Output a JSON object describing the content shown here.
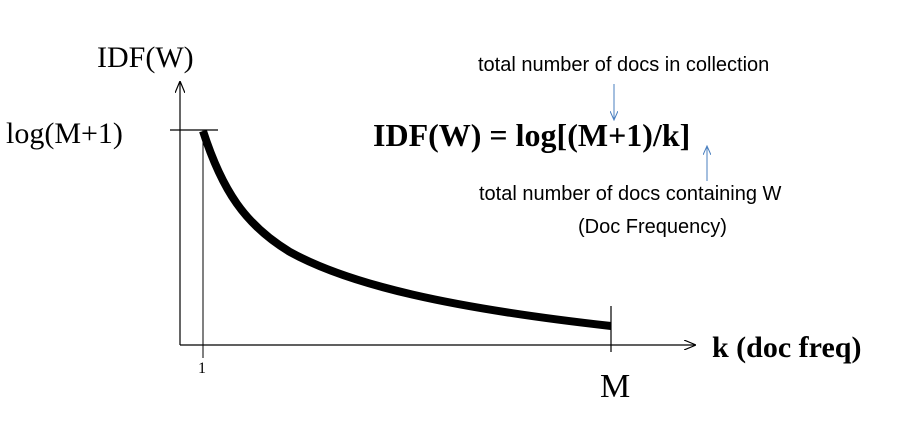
{
  "y_axis_label": "IDF(W)",
  "y_tick_label": "log(M+1)",
  "x_axis_label": "k (doc freq)",
  "x_tick_start": "1",
  "x_tick_end": "M",
  "formula": "IDF(W) = log[(M+1)/k]",
  "annotation_top": "total number of docs in collection",
  "annotation_bottom_line1": "total number of docs containing W",
  "annotation_bottom_line2": "(Doc Frequency)",
  "colors": {
    "axis": "#000000",
    "curve": "#000000",
    "pointer_arrow": "#4a7fbf"
  }
}
